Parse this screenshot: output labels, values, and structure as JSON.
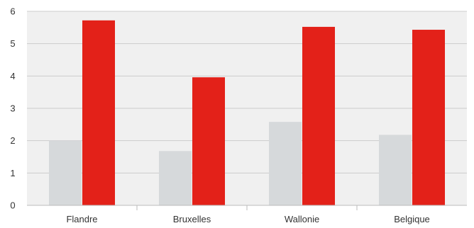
{
  "chart_data": {
    "type": "bar",
    "categories": [
      "Flandre",
      "Bruxelles",
      "Wallonie",
      "Belgique"
    ],
    "series": [
      {
        "color": "#d6d9db",
        "values": [
          2.0,
          1.68,
          2.58,
          2.18
        ]
      },
      {
        "color": "#e32119",
        "values": [
          5.72,
          3.96,
          5.52,
          5.43
        ]
      }
    ],
    "ylim": [
      0,
      6
    ],
    "yticks": [
      0,
      1,
      2,
      3,
      4,
      5,
      6
    ],
    "grid": true,
    "background": "#f0f0f0",
    "gridline_color": "#cccccc"
  }
}
